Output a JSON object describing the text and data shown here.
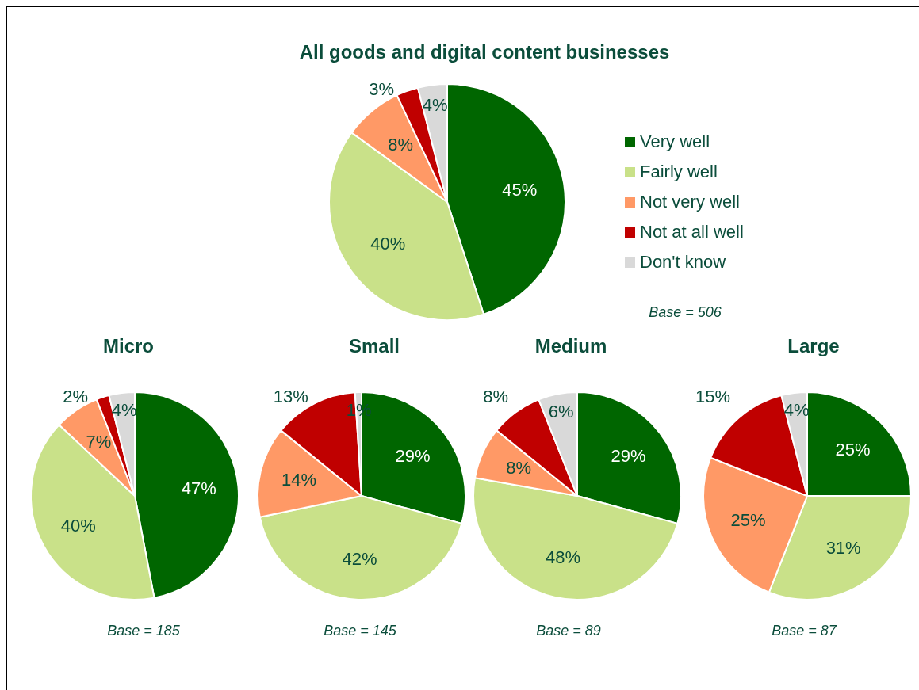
{
  "chart_data": [
    {
      "type": "pie",
      "title": "All goods and digital content businesses",
      "categories": [
        "Very well",
        "Fairly well",
        "Not very well",
        "Not at all well",
        "Don't know"
      ],
      "values": [
        45,
        40,
        8,
        3,
        4
      ],
      "value_labels": [
        "45%",
        "40%",
        "8%",
        "3%",
        "4%"
      ],
      "colors": [
        "#006600",
        "#c9e189",
        "#ff9966",
        "#c00000",
        "#d9d9d9"
      ],
      "legend": "right",
      "annotations": [
        "Base = 506"
      ]
    },
    {
      "type": "pie",
      "title": "Micro",
      "categories": [
        null,
        null,
        null,
        null,
        null
      ],
      "values": [
        47,
        40,
        7,
        2,
        4
      ],
      "value_labels": [
        "47%",
        "40%",
        "7%",
        "2%",
        "4%"
      ],
      "colors": [
        "#006600",
        "#c9e189",
        "#ff9966",
        "#c00000",
        "#d9d9d9"
      ],
      "annotations": [
        "Base = 185"
      ]
    },
    {
      "type": "pie",
      "title": "Small",
      "categories": [
        null,
        null,
        null,
        null,
        null
      ],
      "values": [
        29,
        42,
        14,
        13,
        1
      ],
      "value_labels": [
        "29%",
        "42%",
        "14%",
        "13%",
        "1%"
      ],
      "colors": [
        "#006600",
        "#c9e189",
        "#ff9966",
        "#c00000",
        "#d9d9d9"
      ],
      "annotations": [
        "Base = 145"
      ]
    },
    {
      "type": "pie",
      "title": "Medium",
      "categories": [
        null,
        null,
        null,
        null,
        null
      ],
      "values": [
        29,
        48,
        8,
        8,
        6
      ],
      "value_labels": [
        "29%",
        "48%",
        "8%",
        "8%",
        "6%"
      ],
      "colors": [
        "#006600",
        "#c9e189",
        "#ff9966",
        "#c00000",
        "#d9d9d9"
      ],
      "annotations": [
        "Base = 89"
      ]
    },
    {
      "type": "pie",
      "title": "Large",
      "categories": [
        null,
        null,
        null,
        null,
        null
      ],
      "values": [
        25,
        31,
        25,
        15,
        4
      ],
      "value_labels": [
        "25%",
        "31%",
        "25%",
        "15%",
        "4%"
      ],
      "colors": [
        "#006600",
        "#c9e189",
        "#ff9966",
        "#c00000",
        "#d9d9d9"
      ],
      "annotations": [
        "Base = 87"
      ]
    }
  ]
}
